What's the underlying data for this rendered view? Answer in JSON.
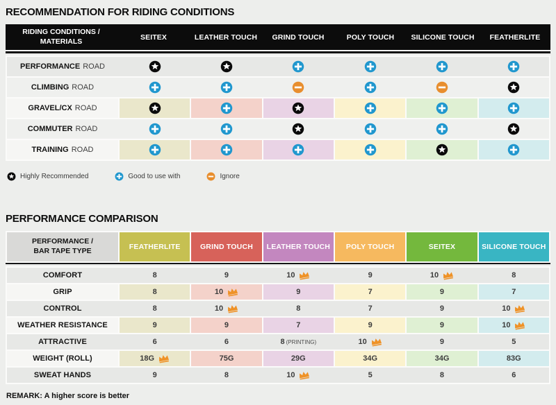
{
  "chart_data": [
    {
      "type": "table",
      "title": "RECOMMENDATION FOR RIDING CONDITIONS",
      "corner_label": [
        "RIDING CONDITIONS /",
        "MATERIALS"
      ],
      "columns": [
        "SEITEX",
        "LEATHER TOUCH",
        "GRIND TOUCH",
        "POLY TOUCH",
        "SILICONE TOUCH",
        "FEATHERLITE"
      ],
      "rows": [
        {
          "label": "PERFORMANCE",
          "label_suffix": "ROAD",
          "tinted": false,
          "cells": [
            "star",
            "star",
            "plus",
            "plus",
            "plus",
            "plus"
          ]
        },
        {
          "label": "CLIMBING",
          "label_suffix": "ROAD",
          "tinted": false,
          "cells": [
            "plus",
            "plus",
            "minus",
            "plus",
            "minus",
            "star"
          ]
        },
        {
          "label": "GRAVEL/CX",
          "label_suffix": "ROAD",
          "tinted": true,
          "cells": [
            "star",
            "plus",
            "star",
            "plus",
            "plus",
            "plus"
          ]
        },
        {
          "label": "COMMUTER",
          "label_suffix": "ROAD",
          "tinted": false,
          "cells": [
            "plus",
            "plus",
            "star",
            "plus",
            "plus",
            "star"
          ]
        },
        {
          "label": "TRAINING",
          "label_suffix": "ROAD",
          "tinted": true,
          "cells": [
            "plus",
            "plus",
            "plus",
            "plus",
            "star",
            "plus"
          ]
        }
      ],
      "icon_meaning": {
        "star": "Highly Recommended",
        "plus": "Good to use with",
        "minus": "Ignore"
      }
    },
    {
      "type": "table",
      "title": "PERFORMANCE COMPARISON",
      "corner_label": [
        "PERFORMANCE /",
        "BAR TAPE TYPE"
      ],
      "columns": [
        "FEATHERLITE",
        "GRIND TOUCH",
        "LEATHER TOUCH",
        "POLY TOUCH",
        "SEITEX",
        "SILICONE TOUCH"
      ],
      "header_colors": [
        "#c6c052",
        "#d7625a",
        "#c387bf",
        "#f6b95f",
        "#74b83d",
        "#39b5c3"
      ],
      "rows": [
        {
          "label": "COMFORT",
          "tinted": false,
          "cells": [
            {
              "value": "8"
            },
            {
              "value": "9"
            },
            {
              "value": "10",
              "crown": true
            },
            {
              "value": "9"
            },
            {
              "value": "10",
              "crown": true
            },
            {
              "value": "8"
            }
          ]
        },
        {
          "label": "GRIP",
          "tinted": true,
          "cells": [
            {
              "value": "8"
            },
            {
              "value": "10",
              "crown": true
            },
            {
              "value": "9"
            },
            {
              "value": "7"
            },
            {
              "value": "9"
            },
            {
              "value": "7"
            }
          ]
        },
        {
          "label": "CONTROL",
          "tinted": false,
          "cells": [
            {
              "value": "8"
            },
            {
              "value": "10",
              "crown": true
            },
            {
              "value": "8"
            },
            {
              "value": "7"
            },
            {
              "value": "9"
            },
            {
              "value": "10",
              "crown": true
            }
          ]
        },
        {
          "label": "WEATHER RESISTANCE",
          "tinted": true,
          "cells": [
            {
              "value": "9"
            },
            {
              "value": "9"
            },
            {
              "value": "7"
            },
            {
              "value": "9"
            },
            {
              "value": "9"
            },
            {
              "value": "10",
              "crown": true
            }
          ]
        },
        {
          "label": "ATTRACTIVE",
          "tinted": false,
          "cells": [
            {
              "value": "6"
            },
            {
              "value": "6"
            },
            {
              "value": "8",
              "note": "(PRINTING)"
            },
            {
              "value": "10",
              "crown": true
            },
            {
              "value": "9"
            },
            {
              "value": "5"
            }
          ]
        },
        {
          "label": "WEIGHT (ROLL)",
          "tinted": true,
          "cells": [
            {
              "value": "18G",
              "crown": true
            },
            {
              "value": "75G"
            },
            {
              "value": "29G"
            },
            {
              "value": "34G"
            },
            {
              "value": "34G"
            },
            {
              "value": "83G"
            }
          ]
        },
        {
          "label": "SWEAT HANDS",
          "tinted": false,
          "cells": [
            {
              "value": "9"
            },
            {
              "value": "8"
            },
            {
              "value": "10",
              "crown": true
            },
            {
              "value": "5"
            },
            {
              "value": "8"
            },
            {
              "value": "6"
            }
          ]
        }
      ],
      "remark": "REMARK: A higher score is better"
    }
  ],
  "legend": [
    {
      "icon": "star-icon",
      "label": "Highly Recommended"
    },
    {
      "icon": "plus-icon",
      "label": "Good to use with"
    },
    {
      "icon": "minus-icon",
      "label": "Ignore"
    }
  ],
  "colors": {
    "page_bg": "#edeeec",
    "header_bar_bg": "#0c0c0c",
    "icon_star_bg": "#0b0b0b",
    "icon_plus_bg": "#2097ce",
    "icon_minus_bg": "#e88e2e",
    "crown": "#ef9227",
    "tint_columns": [
      "#eae7cb",
      "#f4d2ca",
      "#e9d3e5",
      "#fbf2cd",
      "#dff0d3",
      "#d3ecee"
    ],
    "tinted_label_bg": "#f6f6f4",
    "plain_row_bg_a": "#e7e8e6",
    "plain_row_bg_b": "#eff0ee"
  }
}
